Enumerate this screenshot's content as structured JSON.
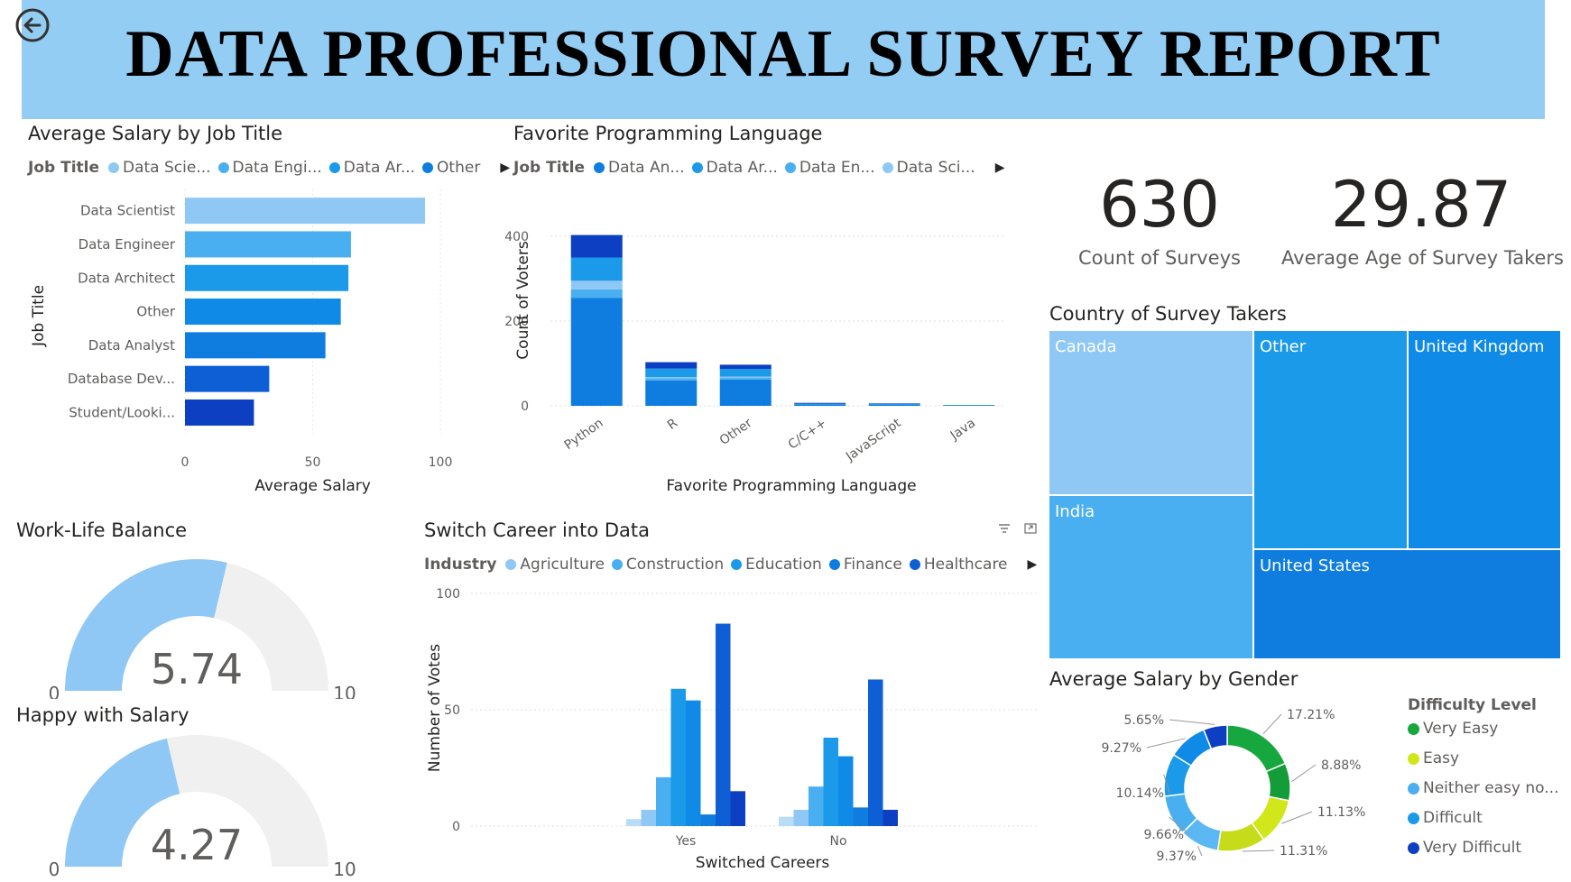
{
  "header": {
    "title": "DATA PROFESSIONAL SURVEY REPORT"
  },
  "colors": {
    "banner": "#93cdf4",
    "blue1": "#8fc8f5",
    "blue2": "#49aff0",
    "blue3": "#1a9ae8",
    "blue4": "#0f7de0",
    "blue5": "#0e5fd6",
    "blue6": "#0d3fc2",
    "gauge_fill": "#8fc8f5",
    "gauge_bg": "#f0f0f0"
  },
  "kpis": [
    {
      "value": "630",
      "label": "Count of Surveys"
    },
    {
      "value": "29.87",
      "label": "Average Age of Survey Takers"
    }
  ],
  "job_salary": {
    "title": "Average Salary by Job Title",
    "legend_title": "Job Title",
    "legend": [
      "Data Scie...",
      "Data Engi...",
      "Data Ar...",
      "Other"
    ],
    "legend_colors": [
      "#8fc8f5",
      "#49aff0",
      "#1a9ae8",
      "#0f7de0"
    ],
    "xlabel": "Average Salary",
    "ylabel": "Job Title",
    "xticks": [
      "0",
      "50",
      "100"
    ],
    "chart_data": {
      "type": "bar",
      "orientation": "horizontal",
      "categories": [
        "Data Scientist",
        "Data Engineer",
        "Data Architect",
        "Other",
        "Data Analyst",
        "Database Dev...",
        "Student/Looki..."
      ],
      "values": [
        94,
        65,
        64,
        61,
        55,
        33,
        27
      ],
      "colors": [
        "#8fc8f5",
        "#49aff0",
        "#1a9ae8",
        "#0f8ae6",
        "#0f7de0",
        "#0e5fd6",
        "#0d3fc2"
      ],
      "xlim": [
        0,
        100
      ],
      "xlabel": "Average Salary",
      "ylabel": "Job Title"
    }
  },
  "lang": {
    "title": "Favorite Programming Language",
    "legend_title": "Job Title",
    "legend": [
      "Data An...",
      "Data Ar...",
      "Data En...",
      "Data Sci..."
    ],
    "legend_colors": [
      "#0f7de0",
      "#1a9ae8",
      "#49aff0",
      "#8fc8f5"
    ],
    "xlabel": "Favorite Programming Language",
    "ylabel": "Count of Voters",
    "yticks": [
      "0",
      "200",
      "400"
    ],
    "chart_data": {
      "type": "bar",
      "stacked": true,
      "categories": [
        "Python",
        "R",
        "Other",
        "C/C++",
        "JavaScript",
        "Java"
      ],
      "series_colors": [
        "#0f7de0",
        "#49aff0",
        "#8fc8f5",
        "#1a9ae8",
        "#0d3fc2"
      ],
      "series": [
        {
          "values": [
            255,
            60,
            62,
            3,
            3,
            1
          ]
        },
        {
          "values": [
            20,
            5,
            4,
            0,
            0,
            0
          ]
        },
        {
          "values": [
            20,
            3,
            3,
            0,
            0,
            0
          ]
        },
        {
          "values": [
            55,
            20,
            18,
            2,
            2,
            1
          ]
        },
        {
          "values": [
            53,
            15,
            10,
            2,
            1,
            0
          ]
        }
      ],
      "ylim": [
        0,
        450
      ],
      "xlabel": "Favorite Programming Language",
      "ylabel": "Count of Voters"
    }
  },
  "wlb": {
    "title": "Work-Life Balance",
    "value": 5.74,
    "value_text": "5.74",
    "min": "0",
    "max": "10",
    "min_num": 0,
    "max_num": 10
  },
  "salary_happy": {
    "title": "Happy with Salary",
    "value": 4.27,
    "value_text": "4.27",
    "min": "0",
    "max": "10",
    "min_num": 0,
    "max_num": 10
  },
  "career": {
    "title": "Switch Career into Data",
    "legend_title": "Industry",
    "legend": [
      "Agriculture",
      "Construction",
      "Education",
      "Finance",
      "Healthcare"
    ],
    "legend_colors": [
      "#8fc8f5",
      "#49aff0",
      "#1a9ae8",
      "#0f7de0",
      "#0e5fd6"
    ],
    "xlabel": "Switched Careers",
    "ylabel": "Number of Votes",
    "yticks": [
      "0",
      "50",
      "100"
    ],
    "chart_data": {
      "type": "bar",
      "categories": [
        "Yes",
        "No"
      ],
      "series_colors": [
        "#b9dcf7",
        "#8fc8f5",
        "#49aff0",
        "#1a9ae8",
        "#0f8ae6",
        "#0f7de0",
        "#0e5fd6",
        "#0d3fc2",
        "#0b2ea8"
      ],
      "series": [
        {
          "values": [
            3,
            4
          ]
        },
        {
          "values": [
            7,
            7
          ]
        },
        {
          "values": [
            21,
            17
          ]
        },
        {
          "values": [
            59,
            38
          ]
        },
        {
          "values": [
            54,
            30
          ]
        },
        {
          "values": [
            5,
            8
          ]
        },
        {
          "values": [
            87,
            63
          ]
        },
        {
          "values": [
            15,
            7
          ]
        }
      ],
      "ylim": [
        0,
        100
      ],
      "xlabel": "Switched Careers",
      "ylabel": "Number of Votes"
    }
  },
  "country": {
    "title": "Country of Survey Takers",
    "chart_data": {
      "type": "treemap",
      "labels": [
        "Canada",
        "India",
        "Other",
        "United Kingdom",
        "United States"
      ],
      "colors": [
        "#8fc8f5",
        "#49aff0",
        "#1a9ae8",
        "#0f8ae6",
        "#0f7de0"
      ]
    }
  },
  "gender": {
    "title": "Average Salary by Gender",
    "legend_title": "Difficulty Level",
    "legend": [
      "Very Easy",
      "Easy",
      "Neither easy no...",
      "Difficult",
      "Very Difficult"
    ],
    "legend_colors": [
      "#17a73f",
      "#d2e61c",
      "#49aff0",
      "#1a9ae8",
      "#0d3fc2"
    ],
    "chart_data": {
      "type": "pie",
      "donut": true,
      "labels": [
        "17.21%",
        "8.88%",
        "11.13%",
        "11.31%",
        "9.37%",
        "9.66%",
        "10.14%",
        "9.27%",
        "5.65%"
      ],
      "values": [
        17.21,
        8.88,
        11.13,
        11.31,
        9.37,
        9.66,
        10.14,
        9.27,
        5.65
      ],
      "colors": [
        "#17a73f",
        "#139c38",
        "#d2e61c",
        "#c6dc1a",
        "#5cb8f2",
        "#49aff0",
        "#1a9ae8",
        "#0f8ae6",
        "#0d3fc2",
        "#0b2ea8"
      ]
    }
  }
}
